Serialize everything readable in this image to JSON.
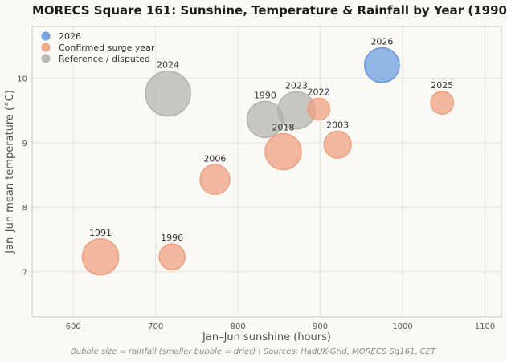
{
  "chart_data": {
    "type": "scatter",
    "title": "MORECS Square 161: Sunshine, Temperature & Rainfall by Year (1990–2026)",
    "xlabel": "Jan–Jun sunshine (hours)",
    "ylabel": "Jan–Jun mean temperature (°C)",
    "xlim": [
      550,
      1120
    ],
    "ylim": [
      6.3,
      10.8
    ],
    "x_ticks": [
      600,
      700,
      800,
      900,
      1000,
      1100
    ],
    "y_ticks": [
      7,
      8,
      9,
      10
    ],
    "grid": true,
    "legend_placement": "top-left",
    "footnote": "Bubble size = rainfall (smaller bubble = drier)  |  Sources: HadUK-Grid, MORECS Sq161, CET",
    "series": [
      {
        "name": "2026",
        "color": "#6a9be0",
        "points": [
          {
            "label": "2026",
            "x": 975,
            "y": 10.2,
            "size": 0.85
          }
        ]
      },
      {
        "name": "Confirmed surge year",
        "color": "#f0a080",
        "points": [
          {
            "label": "1991",
            "x": 633,
            "y": 7.23,
            "size": 0.9
          },
          {
            "label": "1996",
            "x": 720,
            "y": 7.23,
            "size": 0.5
          },
          {
            "label": "2006",
            "x": 772,
            "y": 8.43,
            "size": 0.65
          },
          {
            "label": "2018",
            "x": 855,
            "y": 8.86,
            "size": 0.9
          },
          {
            "label": "2022",
            "x": 898,
            "y": 9.52,
            "size": 0.35
          },
          {
            "label": "2003",
            "x": 921,
            "y": 8.97,
            "size": 0.55
          },
          {
            "label": "2025",
            "x": 1048,
            "y": 9.62,
            "size": 0.38
          }
        ]
      },
      {
        "name": "Reference / disputed",
        "color": "#b4b3ae",
        "points": [
          {
            "label": "2024",
            "x": 715,
            "y": 9.76,
            "size": 1.25
          },
          {
            "label": "1990",
            "x": 833,
            "y": 9.36,
            "size": 0.9
          },
          {
            "label": "2023",
            "x": 871,
            "y": 9.5,
            "size": 0.95
          }
        ]
      }
    ]
  }
}
